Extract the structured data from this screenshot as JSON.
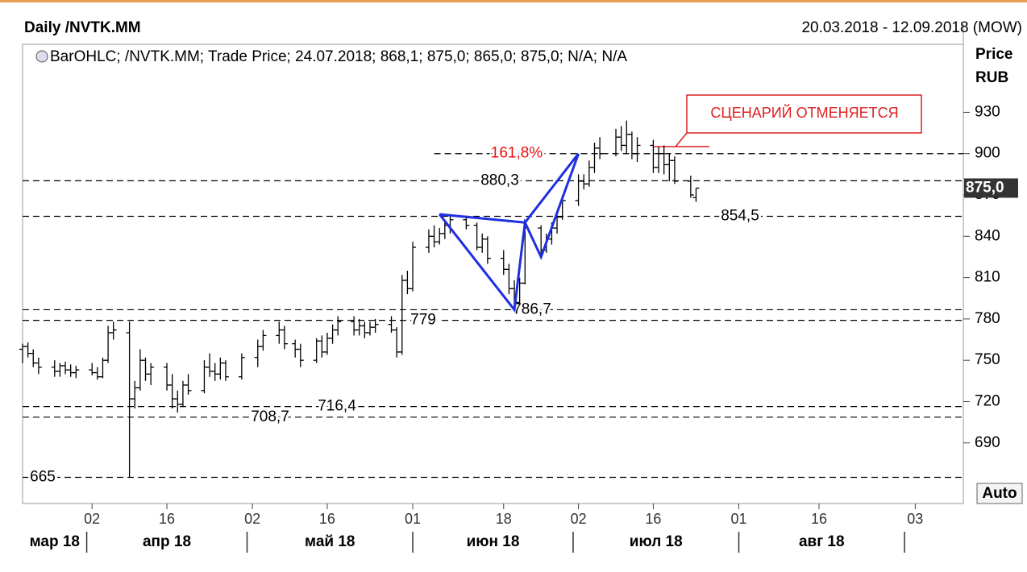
{
  "chart_data": {
    "type": "ohlc",
    "title": "Daily /NVTK.MM",
    "date_range": "20.03.2018 - 12.09.2018 (MOW)",
    "legend": "BarOHLC; /NVTK.MM; Trade Price; 24.07.2018; 868,1; 875,0; 865,0; 875,0; N/A; N/A",
    "y_axis_label": "Price",
    "y_axis_unit": "RUB",
    "auto_button": "Auto",
    "x": [
      "2018-03-20",
      "2018-03-21",
      "2018-03-22",
      "2018-03-23",
      "2018-03-26",
      "2018-03-27",
      "2018-03-28",
      "2018-03-29",
      "2018-03-30",
      "2018-04-02",
      "2018-04-03",
      "2018-04-04",
      "2018-04-05",
      "2018-04-06",
      "2018-04-09",
      "2018-04-10",
      "2018-04-11",
      "2018-04-12",
      "2018-04-13",
      "2018-04-16",
      "2018-04-17",
      "2018-04-18",
      "2018-04-19",
      "2018-04-20",
      "2018-04-23",
      "2018-04-24",
      "2018-04-25",
      "2018-04-26",
      "2018-04-27",
      "2018-04-30",
      "2018-05-03",
      "2018-05-04",
      "2018-05-07",
      "2018-05-08",
      "2018-05-10",
      "2018-05-11",
      "2018-05-14",
      "2018-05-15",
      "2018-05-16",
      "2018-05-17",
      "2018-05-18",
      "2018-05-21",
      "2018-05-22",
      "2018-05-23",
      "2018-05-24",
      "2018-05-25",
      "2018-05-28",
      "2018-05-29",
      "2018-05-30",
      "2018-05-31",
      "2018-06-01",
      "2018-06-04",
      "2018-06-05",
      "2018-06-06",
      "2018-06-07",
      "2018-06-08",
      "2018-06-11",
      "2018-06-13",
      "2018-06-14",
      "2018-06-15",
      "2018-06-18",
      "2018-06-19",
      "2018-06-20",
      "2018-06-21",
      "2018-06-22",
      "2018-06-25",
      "2018-06-26",
      "2018-06-27",
      "2018-06-28",
      "2018-06-29",
      "2018-07-02",
      "2018-07-03",
      "2018-07-04",
      "2018-07-05",
      "2018-07-06",
      "2018-07-09",
      "2018-07-10",
      "2018-07-11",
      "2018-07-12",
      "2018-07-13",
      "2018-07-16",
      "2018-07-17",
      "2018-07-18",
      "2018-07-19",
      "2018-07-20",
      "2018-07-23",
      "2018-07-24"
    ],
    "open": [
      758,
      760,
      755,
      748,
      745,
      742,
      746,
      743,
      741,
      743,
      741,
      738,
      750,
      770,
      770,
      722,
      730,
      750,
      740,
      745,
      732,
      722,
      718,
      732,
      728,
      745,
      742,
      740,
      748,
      738,
      752,
      760,
      768,
      772,
      762,
      758,
      750,
      764,
      756,
      766,
      772,
      778,
      772,
      775,
      770,
      774,
      776,
      772,
      756,
      808,
      802,
      832,
      840,
      836,
      842,
      848,
      852,
      848,
      832,
      838,
      824,
      816,
      802,
      792,
      806,
      846,
      830,
      838,
      846,
      854,
      866,
      880,
      878,
      890,
      904,
      900,
      912,
      906,
      914,
      900,
      906,
      890,
      900,
      892,
      895,
      880,
      868.1
    ],
    "high": [
      762,
      763,
      758,
      752,
      750,
      748,
      749,
      747,
      746,
      748,
      745,
      752,
      775,
      778,
      778,
      735,
      758,
      752,
      748,
      748,
      740,
      728,
      735,
      740,
      750,
      755,
      748,
      752,
      750,
      755,
      765,
      772,
      778,
      775,
      765,
      762,
      766,
      768,
      770,
      776,
      782,
      782,
      780,
      778,
      778,
      780,
      782,
      774,
      812,
      815,
      836,
      845,
      848,
      846,
      852,
      856,
      855,
      850,
      842,
      840,
      830,
      820,
      808,
      810,
      850,
      848,
      842,
      850,
      858,
      870,
      885,
      885,
      895,
      908,
      912,
      918,
      920,
      924,
      916,
      912,
      910,
      905,
      906,
      900,
      898,
      884,
      875
    ],
    "low": [
      748,
      752,
      745,
      740,
      738,
      738,
      740,
      738,
      737,
      739,
      736,
      737,
      748,
      765,
      665,
      715,
      728,
      735,
      732,
      728,
      715,
      712,
      716,
      725,
      726,
      738,
      735,
      736,
      735,
      736,
      745,
      757,
      762,
      758,
      752,
      745,
      748,
      752,
      754,
      762,
      768,
      768,
      768,
      766,
      768,
      770,
      770,
      752,
      754,
      798,
      800,
      828,
      832,
      834,
      838,
      842,
      845,
      830,
      828,
      820,
      812,
      798,
      786.7,
      790,
      805,
      825,
      828,
      834,
      842,
      852,
      862,
      874,
      876,
      886,
      896,
      898,
      902,
      900,
      896,
      894,
      886,
      886,
      885,
      880,
      878,
      868,
      865
    ],
    "close": [
      760,
      755,
      748,
      745,
      742,
      746,
      743,
      741,
      743,
      741,
      738,
      750,
      770,
      772,
      722,
      730,
      750,
      740,
      745,
      732,
      722,
      718,
      732,
      728,
      745,
      742,
      740,
      748,
      738,
      752,
      760,
      768,
      772,
      762,
      758,
      750,
      764,
      756,
      766,
      772,
      778,
      772,
      775,
      770,
      774,
      776,
      772,
      756,
      808,
      802,
      832,
      840,
      836,
      842,
      848,
      852,
      848,
      832,
      838,
      824,
      816,
      802,
      792,
      806,
      846,
      830,
      838,
      846,
      854,
      866,
      880,
      878,
      890,
      904,
      900,
      912,
      906,
      914,
      900,
      906,
      890,
      900,
      892,
      895,
      880,
      870,
      875
    ],
    "color": "#000000",
    "xlim": [
      "2018-03-20",
      "2018-09-12"
    ],
    "xticks": [
      {
        "value": "2018-04-02",
        "label": "02"
      },
      {
        "value": "2018-04-16",
        "label": "16"
      },
      {
        "value": "2018-05-02",
        "label": "02"
      },
      {
        "value": "2018-05-16",
        "label": "16"
      },
      {
        "value": "2018-06-01",
        "label": "01"
      },
      {
        "value": "2018-06-18",
        "label": "18"
      },
      {
        "value": "2018-07-02",
        "label": "02"
      },
      {
        "value": "2018-07-16",
        "label": "16"
      },
      {
        "value": "2018-08-01",
        "label": "01"
      },
      {
        "value": "2018-08-16",
        "label": "16"
      },
      {
        "value": "2018-09-03",
        "label": "03"
      }
    ],
    "months": [
      {
        "value": "2018-03-01",
        "label": "мар 18"
      },
      {
        "value": "2018-04-01",
        "label": "апр 18"
      },
      {
        "value": "2018-05-01",
        "label": "май 18"
      },
      {
        "value": "2018-06-01",
        "label": "июн 18"
      },
      {
        "value": "2018-07-01",
        "label": "июл 18"
      },
      {
        "value": "2018-08-01",
        "label": "авг 18"
      }
    ],
    "ylim": [
      646,
      994
    ],
    "yticks": [
      690,
      720,
      750,
      780,
      810,
      840,
      870,
      900,
      930
    ],
    "last_price": {
      "value": 875,
      "label": "875,0"
    },
    "levels": [
      {
        "value": 880.3,
        "label": "880,3"
      },
      {
        "value": 854.5,
        "label": "854,5"
      },
      {
        "value": 786.7,
        "label": "786,7"
      },
      {
        "value": 779,
        "label": "779"
      },
      {
        "value": 716.4,
        "label": "716,4"
      },
      {
        "value": 708.7,
        "label": "708,7"
      },
      {
        "value": 665,
        "label": "665"
      }
    ],
    "extension": {
      "value": 900,
      "start": "2018-06-05",
      "label": "161,8%"
    },
    "pattern": {
      "color": "#1f2fe0",
      "x": [
        "2018-06-06",
        "2018-06-20",
        "2018-06-22",
        "2018-06-25",
        "2018-07-02"
      ],
      "values": [
        856,
        786.7,
        850,
        825,
        900
      ]
    },
    "annotation": "СЦЕНАРИЙ ОТМЕНЯЕТСЯ"
  }
}
